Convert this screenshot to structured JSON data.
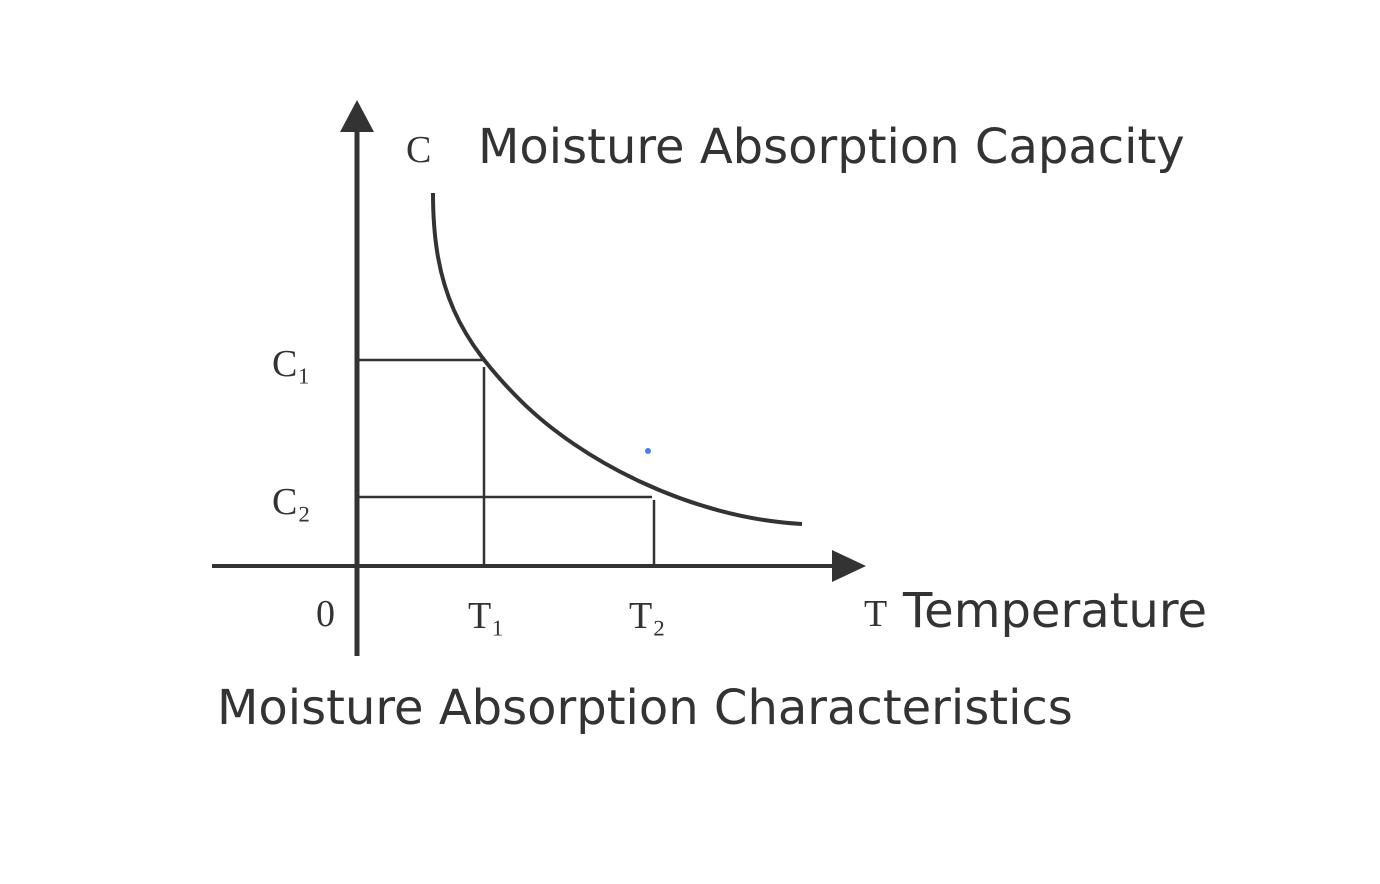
{
  "axis_labels": {
    "y_symbol": "C",
    "y_name": "Moisture Absorption Capacity",
    "x_symbol": "T",
    "x_name": "Temperature",
    "origin": "0"
  },
  "levels": {
    "c1": "C₁",
    "c2": "C₂",
    "t1": "T₁",
    "t2": "T₂"
  },
  "caption": "Moisture Absorption Characteristics"
}
